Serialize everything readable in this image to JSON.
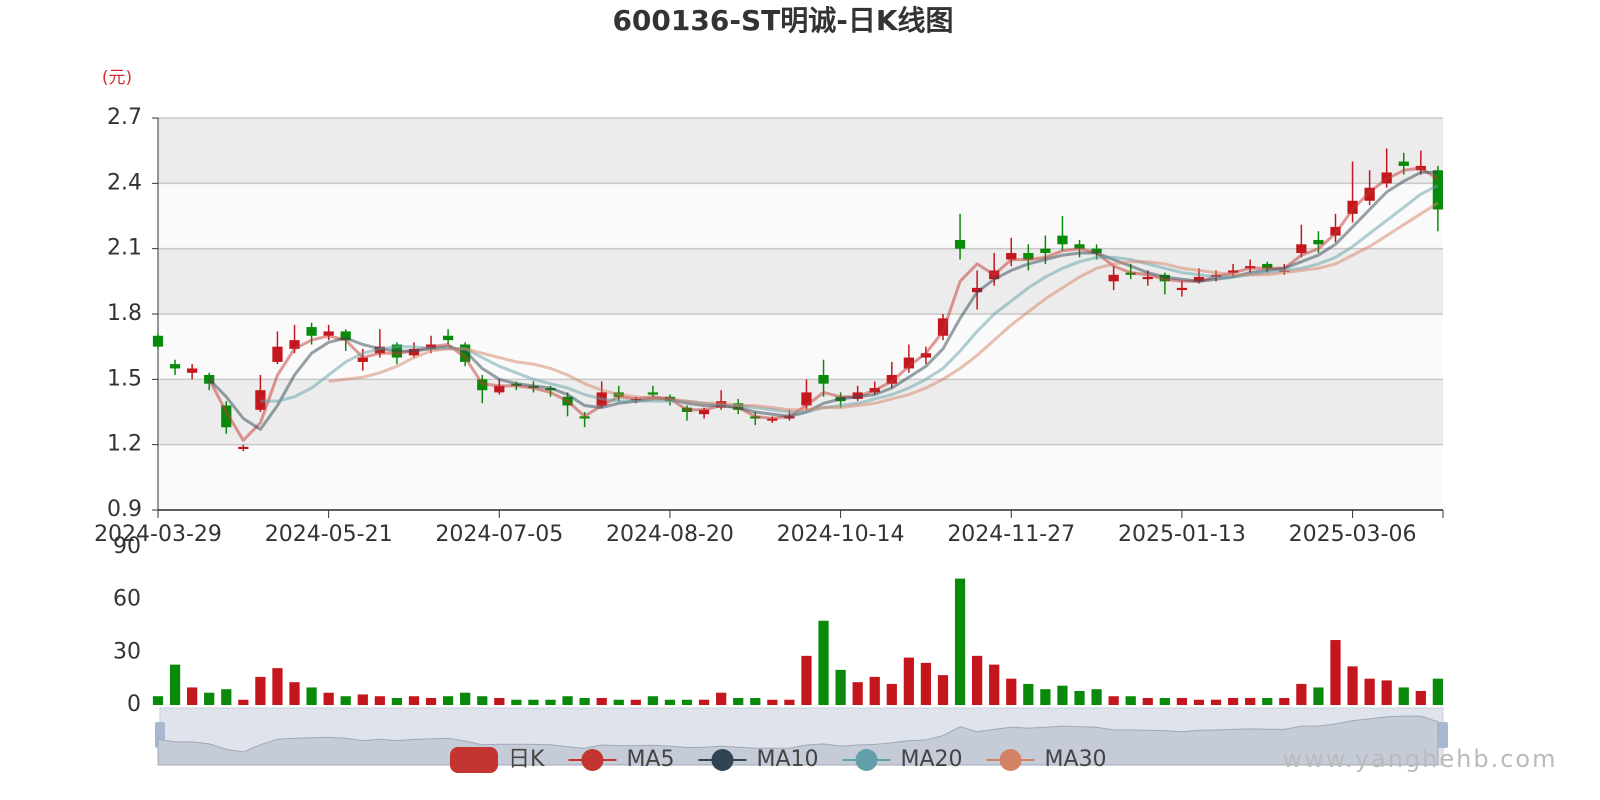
{
  "chart_data": [
    {
      "type": "candlestick",
      "title": "600136-ST明诚-日K线图",
      "y_unit": "(元)",
      "categories": [
        "2024-03-29",
        null,
        null,
        null,
        null,
        null,
        null,
        null,
        null,
        null,
        "2024-05-21",
        null,
        null,
        null,
        null,
        null,
        null,
        null,
        null,
        null,
        "2024-07-05",
        null,
        null,
        null,
        null,
        null,
        null,
        null,
        null,
        null,
        "2024-08-20",
        null,
        null,
        null,
        null,
        null,
        null,
        null,
        null,
        null,
        "2024-10-14",
        null,
        null,
        null,
        null,
        null,
        null,
        null,
        null,
        null,
        "2024-11-27",
        null,
        null,
        null,
        null,
        null,
        null,
        null,
        null,
        null,
        "2025-01-13",
        null,
        null,
        null,
        null,
        null,
        null,
        null,
        null,
        null,
        "2025-03-06",
        null,
        null,
        null,
        null,
        null
      ],
      "ylim": [
        0.9,
        2.7
      ],
      "yticks": [
        0.9,
        1.2,
        1.5,
        1.8,
        2.1,
        2.4,
        2.7
      ],
      "grid": true,
      "up_color": "#c4171d",
      "down_color": "#0a8a0a",
      "series": [
        {
          "name": "日K",
          "color": "#c23531",
          "values": [
            [
              1.7,
              1.65,
              1.64,
              1.71
            ],
            [
              1.57,
              1.55,
              1.52,
              1.59
            ],
            [
              1.53,
              1.55,
              1.5,
              1.57
            ],
            [
              1.52,
              1.48,
              1.45,
              1.53
            ],
            [
              1.38,
              1.28,
              1.25,
              1.4
            ],
            [
              1.18,
              1.19,
              1.17,
              1.2
            ],
            [
              1.36,
              1.45,
              1.35,
              1.52
            ],
            [
              1.58,
              1.65,
              1.57,
              1.72
            ],
            [
              1.64,
              1.68,
              1.62,
              1.75
            ],
            [
              1.74,
              1.7,
              1.66,
              1.76
            ],
            [
              1.7,
              1.72,
              1.68,
              1.75
            ],
            [
              1.72,
              1.68,
              1.63,
              1.73
            ],
            [
              1.58,
              1.6,
              1.54,
              1.64
            ],
            [
              1.62,
              1.65,
              1.6,
              1.73
            ],
            [
              1.66,
              1.6,
              1.57,
              1.67
            ],
            [
              1.61,
              1.64,
              1.6,
              1.67
            ],
            [
              1.64,
              1.66,
              1.62,
              1.7
            ],
            [
              1.7,
              1.68,
              1.66,
              1.73
            ],
            [
              1.66,
              1.58,
              1.56,
              1.67
            ],
            [
              1.5,
              1.45,
              1.39,
              1.52
            ],
            [
              1.44,
              1.47,
              1.43,
              1.5
            ],
            [
              1.48,
              1.47,
              1.45,
              1.49
            ],
            [
              1.47,
              1.46,
              1.44,
              1.49
            ],
            [
              1.46,
              1.45,
              1.42,
              1.47
            ],
            [
              1.42,
              1.38,
              1.33,
              1.44
            ],
            [
              1.33,
              1.32,
              1.28,
              1.35
            ],
            [
              1.38,
              1.44,
              1.37,
              1.49
            ],
            [
              1.44,
              1.42,
              1.4,
              1.47
            ],
            [
              1.41,
              1.41,
              1.39,
              1.42
            ],
            [
              1.44,
              1.43,
              1.42,
              1.47
            ],
            [
              1.42,
              1.4,
              1.38,
              1.43
            ],
            [
              1.37,
              1.35,
              1.31,
              1.38
            ],
            [
              1.34,
              1.36,
              1.32,
              1.37
            ],
            [
              1.37,
              1.4,
              1.36,
              1.45
            ],
            [
              1.39,
              1.36,
              1.34,
              1.41
            ],
            [
              1.33,
              1.32,
              1.29,
              1.35
            ],
            [
              1.31,
              1.32,
              1.3,
              1.33
            ],
            [
              1.32,
              1.33,
              1.31,
              1.36
            ],
            [
              1.38,
              1.44,
              1.36,
              1.5
            ],
            [
              1.52,
              1.48,
              1.42,
              1.59
            ],
            [
              1.42,
              1.4,
              1.37,
              1.44
            ],
            [
              1.41,
              1.44,
              1.4,
              1.47
            ],
            [
              1.44,
              1.46,
              1.43,
              1.49
            ],
            [
              1.48,
              1.52,
              1.46,
              1.58
            ],
            [
              1.55,
              1.6,
              1.53,
              1.66
            ],
            [
              1.6,
              1.62,
              1.57,
              1.65
            ],
            [
              1.7,
              1.78,
              1.68,
              1.8
            ],
            [
              2.14,
              2.1,
              2.05,
              2.26
            ],
            [
              1.9,
              1.92,
              1.82,
              2.0
            ],
            [
              1.96,
              2.0,
              1.93,
              2.08
            ],
            [
              2.05,
              2.08,
              2.02,
              2.15
            ],
            [
              2.08,
              2.05,
              2.0,
              2.12
            ],
            [
              2.1,
              2.08,
              2.03,
              2.16
            ],
            [
              2.16,
              2.12,
              2.09,
              2.25
            ],
            [
              2.12,
              2.1,
              2.06,
              2.14
            ],
            [
              2.1,
              2.08,
              2.05,
              2.12
            ],
            [
              1.95,
              1.98,
              1.91,
              2.02
            ],
            [
              1.99,
              1.98,
              1.96,
              2.03
            ],
            [
              1.96,
              1.97,
              1.93,
              2.0
            ],
            [
              1.98,
              1.95,
              1.89,
              1.99
            ],
            [
              1.91,
              1.92,
              1.88,
              1.95
            ],
            [
              1.95,
              1.97,
              1.94,
              2.01
            ],
            [
              1.97,
              1.98,
              1.95,
              2.0
            ],
            [
              1.99,
              2.0,
              1.97,
              2.03
            ],
            [
              2.01,
              2.02,
              1.99,
              2.05
            ],
            [
              2.03,
              2.01,
              1.99,
              2.04
            ],
            [
              2.0,
              2.0,
              1.98,
              2.03
            ],
            [
              2.08,
              2.12,
              2.06,
              2.21
            ],
            [
              2.14,
              2.12,
              2.08,
              2.18
            ],
            [
              2.16,
              2.2,
              2.13,
              2.26
            ],
            [
              2.26,
              2.32,
              2.22,
              2.5
            ],
            [
              2.32,
              2.38,
              2.3,
              2.46
            ],
            [
              2.4,
              2.45,
              2.38,
              2.56
            ],
            [
              2.5,
              2.48,
              2.44,
              2.54
            ],
            [
              2.46,
              2.48,
              2.44,
              2.55
            ],
            [
              2.46,
              2.28,
              2.18,
              2.48
            ]
          ]
        },
        {
          "name": "MA5",
          "color": "#c23531",
          "values": [
            null,
            null,
            null,
            1.5,
            1.35,
            1.22,
            1.3,
            1.52,
            1.64,
            1.68,
            1.7,
            1.68,
            1.6,
            1.62,
            1.62,
            1.63,
            1.65,
            1.66,
            1.6,
            1.48,
            1.47,
            1.47,
            1.46,
            1.44,
            1.4,
            1.33,
            1.38,
            1.42,
            1.41,
            1.42,
            1.41,
            1.36,
            1.36,
            1.38,
            1.37,
            1.33,
            1.32,
            1.33,
            1.38,
            1.44,
            1.42,
            1.42,
            1.45,
            1.49,
            1.56,
            1.62,
            1.72,
            1.95,
            2.03,
            1.98,
            2.05,
            2.05,
            2.06,
            2.09,
            2.1,
            2.08,
            2.02,
            1.99,
            1.98,
            1.96,
            1.95,
            1.95,
            1.97,
            1.99,
            2.01,
            2.01,
            2.01,
            2.07,
            2.1,
            2.17,
            2.28,
            2.36,
            2.42,
            2.46,
            2.47,
            2.42
          ]
        },
        {
          "name": "MA10",
          "color": "#2f4554",
          "values": [
            null,
            null,
            null,
            1.5,
            1.42,
            1.32,
            1.27,
            1.38,
            1.52,
            1.62,
            1.67,
            1.69,
            1.66,
            1.64,
            1.63,
            1.63,
            1.64,
            1.65,
            1.63,
            1.55,
            1.5,
            1.48,
            1.47,
            1.46,
            1.43,
            1.38,
            1.37,
            1.39,
            1.4,
            1.41,
            1.41,
            1.39,
            1.38,
            1.38,
            1.37,
            1.35,
            1.34,
            1.33,
            1.35,
            1.39,
            1.41,
            1.42,
            1.43,
            1.46,
            1.51,
            1.56,
            1.64,
            1.78,
            1.9,
            1.96,
            2.0,
            2.03,
            2.05,
            2.07,
            2.08,
            2.08,
            2.05,
            2.02,
            1.99,
            1.97,
            1.96,
            1.95,
            1.96,
            1.97,
            1.99,
            2.0,
            2.01,
            2.04,
            2.07,
            2.12,
            2.2,
            2.28,
            2.36,
            2.41,
            2.45,
            2.45
          ]
        },
        {
          "name": "MA20",
          "color": "#61a0a8",
          "values": [
            null,
            null,
            null,
            null,
            null,
            null,
            1.4,
            1.4,
            1.42,
            1.46,
            1.52,
            1.58,
            1.62,
            1.64,
            1.65,
            1.65,
            1.64,
            1.64,
            1.64,
            1.6,
            1.56,
            1.53,
            1.5,
            1.48,
            1.46,
            1.43,
            1.41,
            1.4,
            1.4,
            1.4,
            1.4,
            1.4,
            1.39,
            1.38,
            1.38,
            1.37,
            1.36,
            1.35,
            1.35,
            1.37,
            1.38,
            1.39,
            1.41,
            1.43,
            1.46,
            1.5,
            1.55,
            1.63,
            1.72,
            1.8,
            1.86,
            1.92,
            1.97,
            2.01,
            2.04,
            2.06,
            2.06,
            2.05,
            2.03,
            2.01,
            1.99,
            1.98,
            1.97,
            1.97,
            1.98,
            1.99,
            2.0,
            2.01,
            2.03,
            2.06,
            2.11,
            2.17,
            2.23,
            2.29,
            2.35,
            2.39
          ]
        },
        {
          "name": "MA30",
          "color": "#d48265",
          "values": [
            null,
            null,
            null,
            null,
            null,
            null,
            null,
            null,
            null,
            null,
            1.49,
            1.5,
            1.51,
            1.53,
            1.56,
            1.6,
            1.63,
            1.64,
            1.64,
            1.62,
            1.6,
            1.58,
            1.57,
            1.55,
            1.52,
            1.48,
            1.45,
            1.43,
            1.42,
            1.41,
            1.41,
            1.4,
            1.39,
            1.39,
            1.38,
            1.38,
            1.37,
            1.36,
            1.36,
            1.37,
            1.37,
            1.38,
            1.39,
            1.41,
            1.43,
            1.46,
            1.5,
            1.55,
            1.61,
            1.68,
            1.75,
            1.81,
            1.87,
            1.92,
            1.97,
            2.01,
            2.03,
            2.04,
            2.04,
            2.03,
            2.01,
            2.0,
            1.99,
            1.98,
            1.98,
            1.98,
            1.99,
            2.0,
            2.01,
            2.03,
            2.07,
            2.11,
            2.16,
            2.21,
            2.26,
            2.31
          ]
        }
      ]
    },
    {
      "type": "bar",
      "ylim": [
        0,
        90
      ],
      "yticks": [
        0,
        30,
        60,
        90
      ],
      "values": [
        5,
        23,
        10,
        7,
        9,
        3,
        16,
        21,
        13,
        10,
        7,
        5,
        6,
        5,
        4,
        5,
        4,
        5,
        7,
        5,
        4,
        3,
        3,
        3,
        5,
        4,
        4,
        3,
        3,
        5,
        3,
        3,
        3,
        7,
        4,
        4,
        3,
        3,
        28,
        48,
        20,
        13,
        16,
        12,
        27,
        24,
        17,
        72,
        28,
        23,
        15,
        12,
        9,
        11,
        8,
        9,
        5,
        5,
        4,
        4,
        4,
        3,
        3,
        4,
        4,
        4,
        4,
        12,
        10,
        37,
        22,
        15,
        14,
        10,
        8,
        15
      ]
    }
  ],
  "watermark": "www.yanghehb.com"
}
